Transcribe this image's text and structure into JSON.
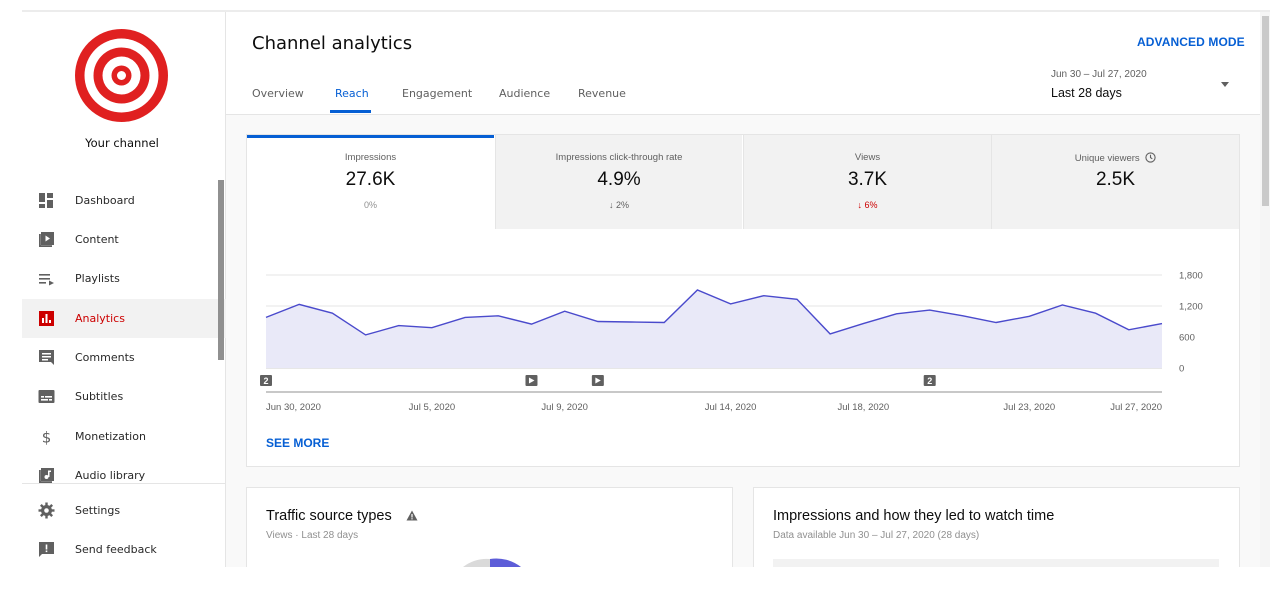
{
  "sidebar": {
    "channel_label": "Your channel",
    "items": [
      {
        "label": "Dashboard",
        "icon": "dashboard-icon"
      },
      {
        "label": "Content",
        "icon": "content-icon"
      },
      {
        "label": "Playlists",
        "icon": "playlists-icon"
      },
      {
        "label": "Analytics",
        "icon": "analytics-icon",
        "active": true
      },
      {
        "label": "Comments",
        "icon": "comments-icon"
      },
      {
        "label": "Subtitles",
        "icon": "subtitles-icon"
      },
      {
        "label": "Monetization",
        "icon": "monetization-icon"
      },
      {
        "label": "Audio library",
        "icon": "audio-library-icon"
      },
      {
        "label": "Settings",
        "icon": "settings-icon"
      },
      {
        "label": "Send feedback",
        "icon": "feedback-icon"
      }
    ]
  },
  "header": {
    "title": "Channel analytics",
    "advanced_mode": "ADVANCED MODE",
    "tabs": [
      {
        "label": "Overview"
      },
      {
        "label": "Reach",
        "active": true
      },
      {
        "label": "Engagement"
      },
      {
        "label": "Audience"
      },
      {
        "label": "Revenue"
      }
    ],
    "date_range": "Jun 30 – Jul 27, 2020",
    "date_label": "Last 28 days"
  },
  "metrics": [
    {
      "label": "Impressions",
      "value": "27.6K",
      "delta": "0%"
    },
    {
      "label": "Impressions click-through rate",
      "value": "4.9%",
      "delta": "2%",
      "arrow": "↓"
    },
    {
      "label": "Views",
      "value": "3.7K",
      "delta": "6%",
      "arrow": "↓"
    },
    {
      "label": "Unique viewers",
      "value": "2.5K",
      "delta": "",
      "info_icon": "clock-icon"
    }
  ],
  "chart_data": {
    "type": "area",
    "series": [
      {
        "values": [
          980,
          1230,
          1060,
          640,
          820,
          780,
          980,
          1010,
          850,
          1100,
          900,
          890,
          880,
          1510,
          1240,
          1400,
          1330,
          660,
          860,
          1050,
          1120,
          1010,
          880,
          1000,
          1220,
          1060,
          740,
          860
        ]
      }
    ],
    "x_tick_labels": [
      "Jun 30, 2020",
      "Jul 5, 2020",
      "Jul 9, 2020",
      "Jul 14, 2020",
      "Jul 18, 2020",
      "Jul 23, 2020",
      "Jul 27, 2020"
    ],
    "y_tick_labels": [
      "1,800",
      "1,200",
      "600",
      "0"
    ],
    "ylim": [
      0,
      1800
    ],
    "grid": true,
    "markers": [
      {
        "label": "2",
        "kind": "count"
      },
      {
        "label": "",
        "kind": "video"
      },
      {
        "label": "",
        "kind": "video"
      },
      {
        "label": "2",
        "kind": "count"
      }
    ],
    "colors": {
      "line": "#4a4acc",
      "fill": "#e9e9f8"
    }
  },
  "see_more": "SEE MORE",
  "traffic_card": {
    "title": "Traffic source types",
    "subtitle": "Views · Last 28 days"
  },
  "impressions_card": {
    "title": "Impressions and how they led to watch time",
    "subtitle": "Data available Jun 30 – Jul 27, 2020 (28 days)"
  }
}
